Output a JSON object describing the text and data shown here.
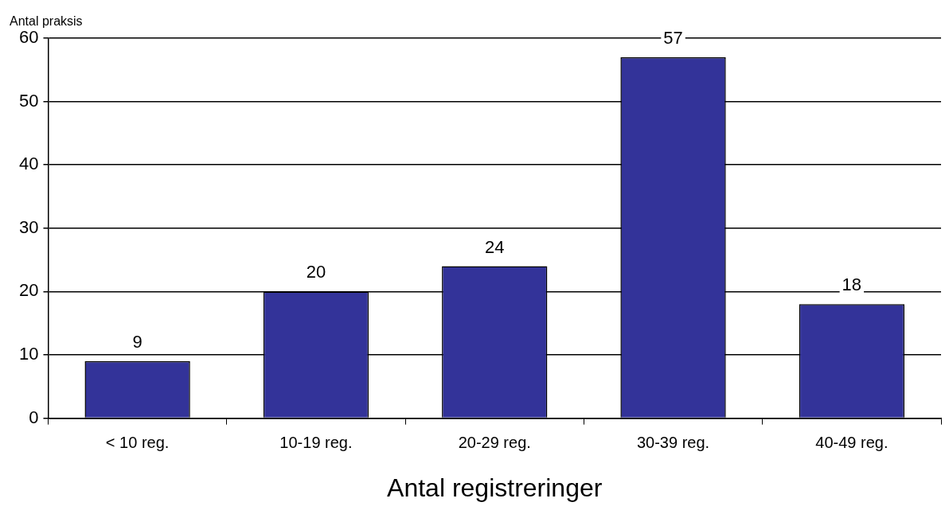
{
  "chart_data": {
    "type": "bar",
    "ylabel": "Antal praksis",
    "xlabel": "Antal registreringer",
    "categories": [
      "< 10 reg.",
      "10-19 reg.",
      "20-29 reg.",
      "30-39 reg.",
      "40-49 reg."
    ],
    "values": [
      9,
      20,
      24,
      57,
      18
    ],
    "color": "#333399",
    "ylim": [
      0,
      60
    ],
    "yticks": [
      0,
      10,
      20,
      30,
      40,
      50,
      60
    ],
    "grid": "y",
    "data_labels": true,
    "legend": false
  }
}
